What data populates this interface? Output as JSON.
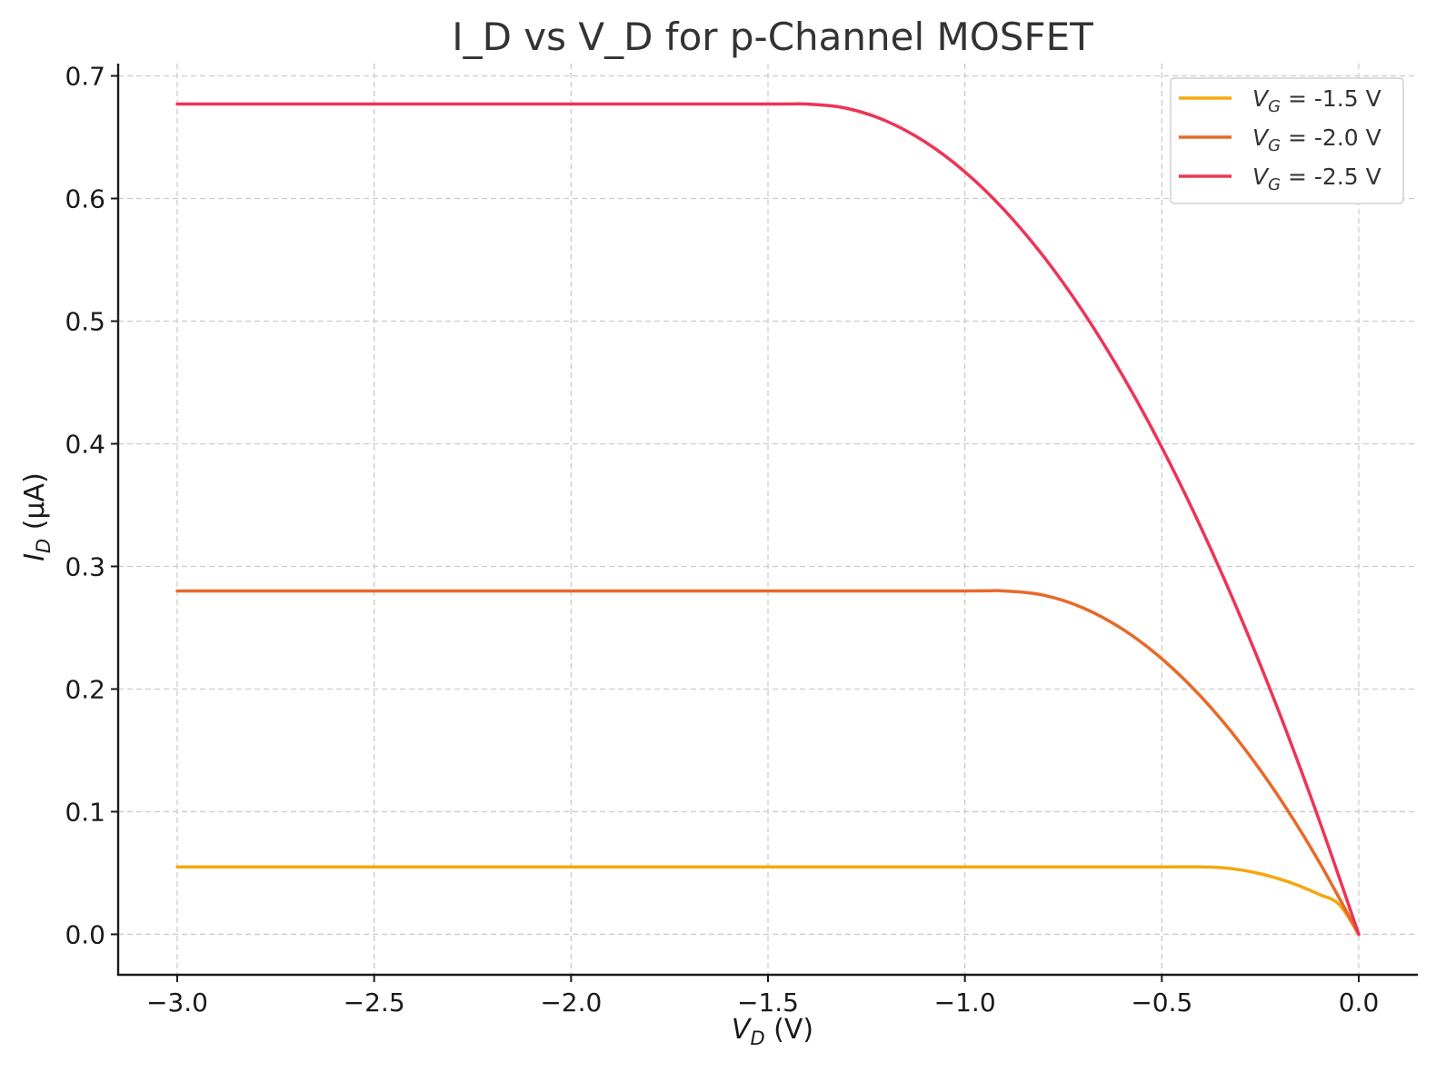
{
  "chart_data": {
    "type": "line",
    "title": "I_D vs V_D for p-Channel MOSFET",
    "xlabel": {
      "main": "V",
      "sub": "D",
      "rest": " (V)"
    },
    "ylabel": {
      "main": "I",
      "sub": "D",
      "rest": " (μA)"
    },
    "xlim": [
      -3.15,
      0.15
    ],
    "ylim": [
      -0.033,
      0.71
    ],
    "xticks": [
      -3.0,
      -2.5,
      -2.0,
      -1.5,
      -1.0,
      -0.5,
      0.0
    ],
    "xtick_labels": [
      "−3.0",
      "−2.5",
      "−2.0",
      "−1.5",
      "−1.0",
      "−0.5",
      "0.0"
    ],
    "yticks": [
      0.0,
      0.1,
      0.2,
      0.3,
      0.4,
      0.5,
      0.6,
      0.7
    ],
    "ytick_labels": [
      "0.0",
      "0.1",
      "0.2",
      "0.3",
      "0.4",
      "0.5",
      "0.6",
      "0.7"
    ],
    "grid": true,
    "legend_position": "top-right",
    "series": [
      {
        "legend": {
          "main": "V",
          "sub": "G",
          "rest": " = -1.5 V"
        },
        "color": "#f5a70d",
        "x": [
          -3.0,
          -2.5,
          -2.0,
          -1.5,
          -1.0,
          -0.5,
          -0.4,
          -0.35,
          -0.3,
          -0.25,
          -0.2,
          -0.15,
          -0.1,
          -0.05,
          0.0
        ],
        "y": [
          0.055,
          0.055,
          0.055,
          0.055,
          0.055,
          0.055,
          0.055,
          0.0544,
          0.0525,
          0.0494,
          0.045,
          0.0394,
          0.0325,
          0.0244,
          0.0
        ]
      },
      {
        "legend": {
          "main": "V",
          "sub": "G",
          "rest": " = -2.0 V"
        },
        "color": "#e8692a",
        "x": [
          -3.0,
          -2.5,
          -2.0,
          -1.5,
          -1.0,
          -0.9,
          -0.8,
          -0.7,
          -0.6,
          -0.5,
          -0.4,
          -0.3,
          -0.2,
          -0.1,
          0.0
        ],
        "y": [
          0.28,
          0.28,
          0.28,
          0.28,
          0.28,
          0.28,
          0.2765,
          0.2662,
          0.2489,
          0.2247,
          0.1936,
          0.1556,
          0.1106,
          0.0588,
          0.0
        ]
      },
      {
        "legend": {
          "main": "V",
          "sub": "G",
          "rest": " = -2.5 V"
        },
        "color": "#ed3456",
        "x": [
          -3.0,
          -2.5,
          -2.0,
          -1.5,
          -1.4,
          -1.3,
          -1.2,
          -1.1,
          -1.0,
          -0.9,
          -0.8,
          -0.7,
          -0.6,
          -0.5,
          -0.4,
          -0.3,
          -0.2,
          -0.1,
          0.0
        ],
        "y": [
          0.677,
          0.677,
          0.677,
          0.677,
          0.677,
          0.6735,
          0.6632,
          0.6459,
          0.6217,
          0.5906,
          0.5526,
          0.5077,
          0.4558,
          0.397,
          0.3313,
          0.2587,
          0.1792,
          0.0927,
          0.0
        ]
      }
    ]
  }
}
